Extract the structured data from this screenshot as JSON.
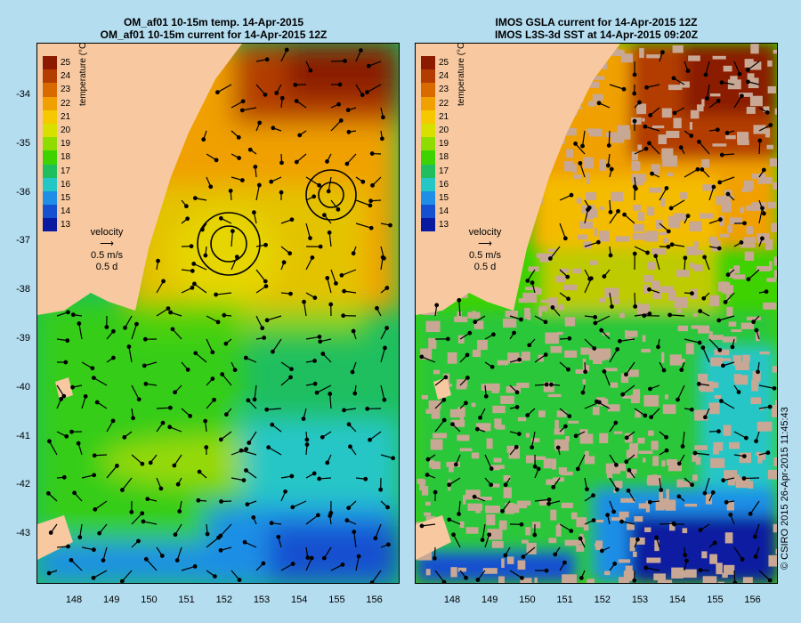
{
  "left_panel": {
    "title_line1": "OM_af01 10-15m temp. 14-Apr-2015",
    "title_line2": "OM_af01 10-15m current for 14-Apr-2015 12Z"
  },
  "right_panel": {
    "title_line1": "IMOS GSLA current for 14-Apr-2015 12Z",
    "title_line2": "IMOS L3S-3d SST at 14-Apr-2015 09:20Z"
  },
  "y_ticks": [
    "-34",
    "-35",
    "-36",
    "-37",
    "-38",
    "-39",
    "-40",
    "-41",
    "-42",
    "-43"
  ],
  "x_ticks": [
    "148",
    "149",
    "150",
    "151",
    "152",
    "153",
    "154",
    "155",
    "156"
  ],
  "colorbar": {
    "title": "temperature (°C)",
    "labels": [
      "25",
      "24",
      "23",
      "22",
      "21",
      "20",
      "19",
      "18",
      "17",
      "16",
      "15",
      "14",
      "13"
    ],
    "colors": [
      "#8b1a00",
      "#b33c00",
      "#d96a00",
      "#f0a000",
      "#f5c800",
      "#d8e000",
      "#8fdc00",
      "#3ed200",
      "#1fbf60",
      "#25c6c6",
      "#1e8ee6",
      "#1450d0",
      "#0a1aa0"
    ]
  },
  "velocity_legend": {
    "label": "velocity",
    "speed": "0.5 m/s",
    "duration": "0.5 d"
  },
  "footer": {
    "copyright": "© CSIRO 2015  26-Apr-2015 11:45:43"
  },
  "colors": {
    "land": "#f8c9a0",
    "background": "#b4ddf0",
    "cloud_gap": "#c8a894"
  }
}
